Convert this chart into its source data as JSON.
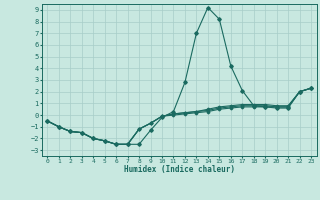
{
  "xlabel": "Humidex (Indice chaleur)",
  "xlim": [
    -0.5,
    23.5
  ],
  "ylim": [
    -3.5,
    9.5
  ],
  "xticks": [
    0,
    1,
    2,
    3,
    4,
    5,
    6,
    7,
    8,
    9,
    10,
    11,
    12,
    13,
    14,
    15,
    16,
    17,
    18,
    19,
    20,
    21,
    22,
    23
  ],
  "yticks": [
    -3,
    -2,
    -1,
    0,
    1,
    2,
    3,
    4,
    5,
    6,
    7,
    8,
    9
  ],
  "background_color": "#c8e8e0",
  "grid_color": "#a8cec8",
  "line_color": "#1a6a60",
  "series": [
    {
      "x": [
        0,
        1,
        2,
        3,
        4,
        5,
        6,
        7,
        8,
        9,
        10,
        11,
        12,
        13,
        14,
        15,
        16,
        17,
        18,
        19,
        20,
        21,
        22,
        23
      ],
      "y": [
        -0.5,
        -1.0,
        -1.4,
        -1.5,
        -2.0,
        -2.2,
        -2.5,
        -2.5,
        -2.5,
        -1.3,
        -0.2,
        0.3,
        2.8,
        7.0,
        9.2,
        8.2,
        4.2,
        2.1,
        0.8,
        0.7,
        0.6,
        0.6,
        2.0,
        2.3
      ]
    },
    {
      "x": [
        0,
        1,
        2,
        3,
        4,
        5,
        6,
        7,
        8,
        9,
        10,
        11,
        12,
        13,
        14,
        15,
        16,
        17,
        18,
        19,
        20,
        21,
        22,
        23
      ],
      "y": [
        -0.5,
        -1.0,
        -1.4,
        -1.5,
        -2.0,
        -2.2,
        -2.5,
        -2.5,
        -1.2,
        -0.7,
        -0.1,
        0.1,
        0.2,
        0.3,
        0.5,
        0.7,
        0.8,
        0.9,
        0.9,
        0.9,
        0.8,
        0.8,
        2.0,
        2.3
      ]
    },
    {
      "x": [
        0,
        1,
        2,
        3,
        4,
        5,
        6,
        7,
        8,
        9,
        10,
        11,
        12,
        13,
        14,
        15,
        16,
        17,
        18,
        19,
        20,
        21,
        22,
        23
      ],
      "y": [
        -0.5,
        -1.0,
        -1.4,
        -1.5,
        -2.0,
        -2.2,
        -2.5,
        -2.5,
        -1.2,
        -0.7,
        -0.1,
        0.1,
        0.2,
        0.3,
        0.4,
        0.6,
        0.7,
        0.8,
        0.8,
        0.8,
        0.7,
        0.7,
        2.0,
        2.3
      ]
    },
    {
      "x": [
        0,
        1,
        2,
        3,
        4,
        5,
        6,
        7,
        8,
        9,
        10,
        11,
        12,
        13,
        14,
        15,
        16,
        17,
        18,
        19,
        20,
        21,
        22,
        23
      ],
      "y": [
        -0.5,
        -1.0,
        -1.4,
        -1.5,
        -2.0,
        -2.2,
        -2.5,
        -2.5,
        -1.2,
        -0.7,
        -0.1,
        0.0,
        0.1,
        0.2,
        0.3,
        0.5,
        0.6,
        0.7,
        0.7,
        0.7,
        0.7,
        0.7,
        2.0,
        2.3
      ]
    }
  ]
}
